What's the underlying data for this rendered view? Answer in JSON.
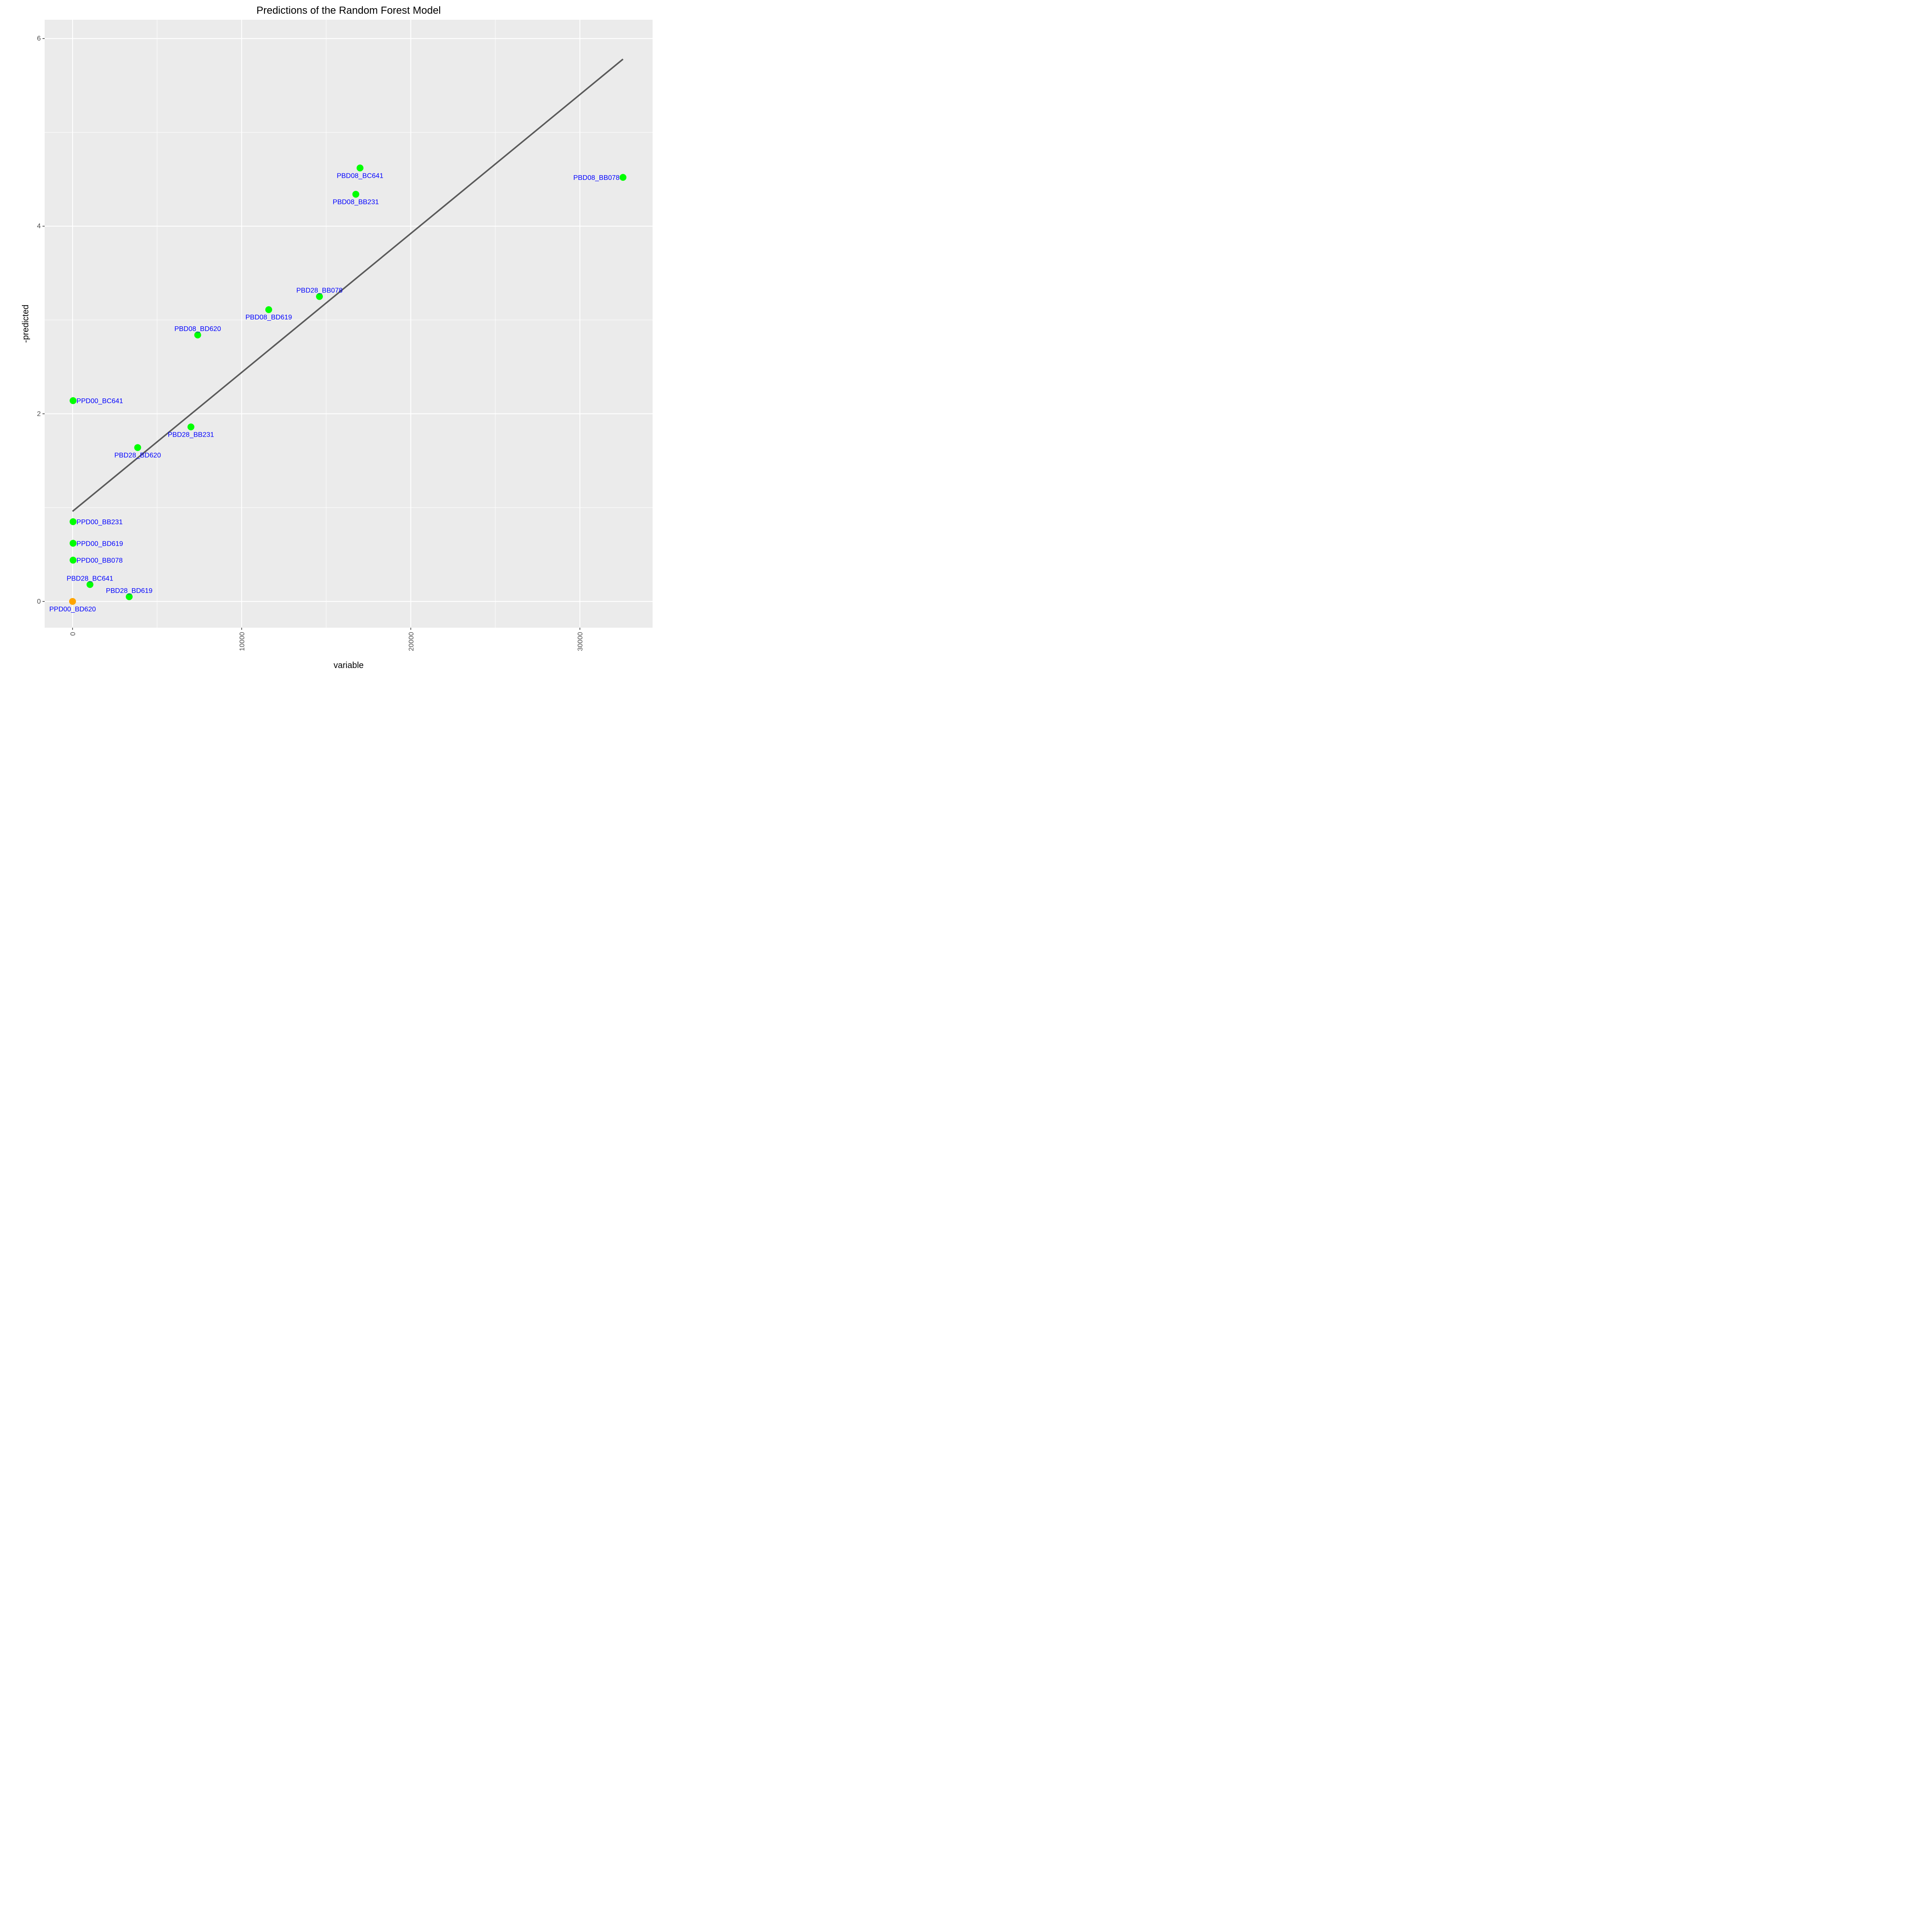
{
  "chart_data": {
    "type": "scatter",
    "title": "Predictions of the Random Forest Model",
    "xlabel": "variable",
    "ylabel": "-predicted",
    "xlim": [
      -1650,
      34300
    ],
    "ylim": [
      -0.28,
      6.2
    ],
    "x_ticks": [
      0,
      10000,
      20000,
      30000
    ],
    "x_ticklabels": [
      "0",
      "10000",
      "20000",
      "30000"
    ],
    "x_minor": [
      5000,
      15000,
      25000
    ],
    "y_ticks": [
      0,
      2,
      4,
      6
    ],
    "y_ticklabels": [
      "0",
      "2",
      "4",
      "6"
    ],
    "y_minor": [
      1,
      3,
      5
    ],
    "grid": true,
    "colors": {
      "panel": "#ebebeb",
      "grid": "#ffffff",
      "point": "#00ff00",
      "highlight": "#ffa500",
      "label": "#0000ff",
      "line": "#595959"
    },
    "fit_line": {
      "x": [
        0,
        32550
      ],
      "y": [
        0.96,
        5.78
      ]
    },
    "points": [
      {
        "label": "PBD08_BB078",
        "x": 32550,
        "y": 4.52,
        "color": "#00ff00",
        "label_pos": "left"
      },
      {
        "label": "PBD08_BC641",
        "x": 17000,
        "y": 4.62,
        "color": "#00ff00",
        "label_pos": "below"
      },
      {
        "label": "PBD08_BB231",
        "x": 16750,
        "y": 4.34,
        "color": "#00ff00",
        "label_pos": "below"
      },
      {
        "label": "PBD28_BB078",
        "x": 14600,
        "y": 3.25,
        "color": "#00ff00",
        "label_pos": "above"
      },
      {
        "label": "PBD08_BD619",
        "x": 11600,
        "y": 3.11,
        "color": "#00ff00",
        "label_pos": "below"
      },
      {
        "label": "PBD08_BD620",
        "x": 7400,
        "y": 2.84,
        "color": "#00ff00",
        "label_pos": "above"
      },
      {
        "label": "PPD00_BC641",
        "x": 30,
        "y": 2.14,
        "color": "#00ff00",
        "label_pos": "right"
      },
      {
        "label": "PBD28_BB231",
        "x": 7000,
        "y": 1.86,
        "color": "#00ff00",
        "label_pos": "below"
      },
      {
        "label": "PBD28_BD620",
        "x": 3850,
        "y": 1.64,
        "color": "#00ff00",
        "label_pos": "below"
      },
      {
        "label": "PPD00_BB231",
        "x": 30,
        "y": 0.85,
        "color": "#00ff00",
        "label_pos": "right"
      },
      {
        "label": "PPD00_BD619",
        "x": 30,
        "y": 0.62,
        "color": "#00ff00",
        "label_pos": "right"
      },
      {
        "label": "PPD00_BB078",
        "x": 30,
        "y": 0.44,
        "color": "#00ff00",
        "label_pos": "right"
      },
      {
        "label": "PBD28_BC641",
        "x": 1030,
        "y": 0.18,
        "color": "#00ff00",
        "label_pos": "above"
      },
      {
        "label": "PBD28_BD619",
        "x": 3350,
        "y": 0.05,
        "color": "#00ff00",
        "label_pos": "above"
      },
      {
        "label": "PPD00_BD620",
        "x": 0,
        "y": 0.0,
        "color": "#ffa500",
        "label_pos": "below"
      }
    ]
  }
}
